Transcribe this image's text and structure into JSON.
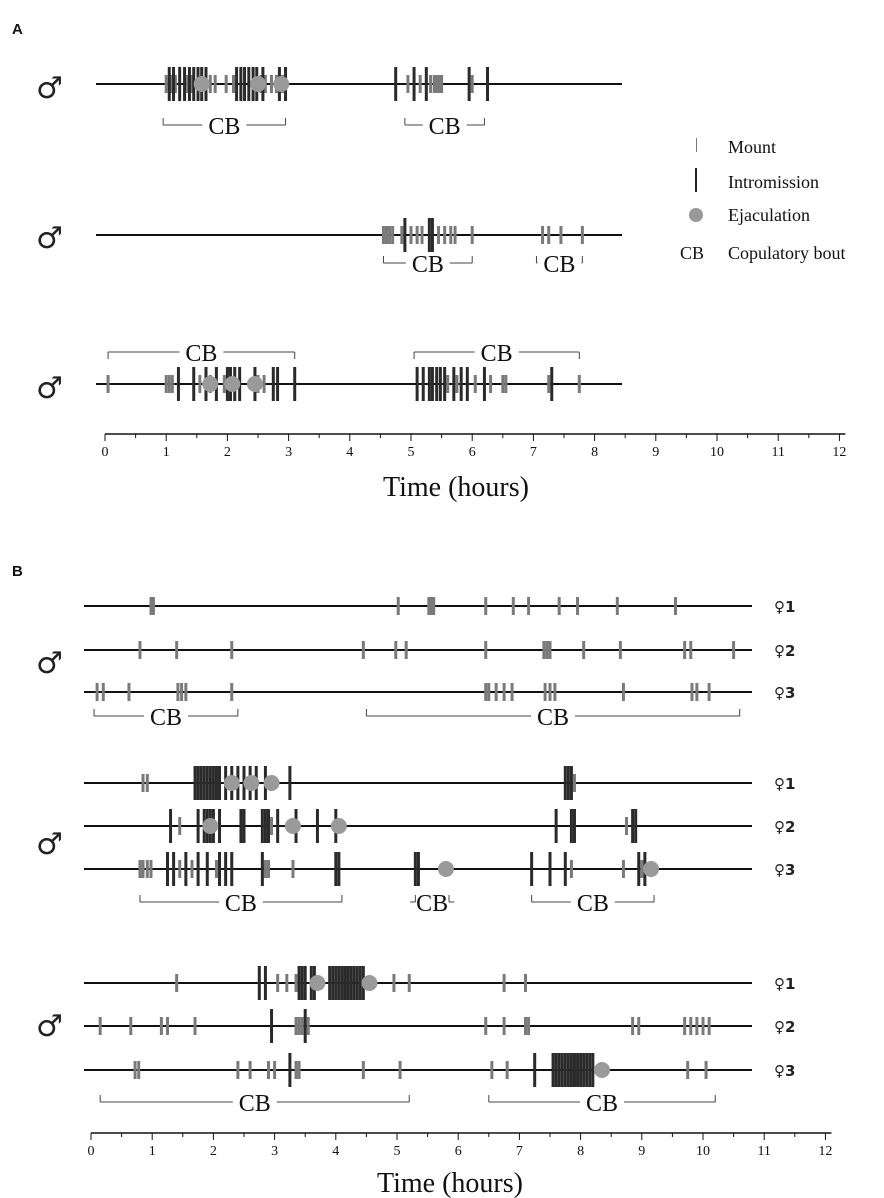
{
  "chart_data": [
    {
      "type": "ethogram",
      "panel": "A",
      "xlabel": "Time (hours)",
      "xlim": [
        0,
        12
      ],
      "x_ticks": [
        "0",
        "1",
        "2",
        "3",
        "4",
        "5",
        "6",
        "7",
        "8",
        "9",
        "10",
        "11",
        "12"
      ],
      "legend": {
        "placement": "right",
        "entries": [
          {
            "symbol": "mount-mark",
            "label": "Mount"
          },
          {
            "symbol": "intromission-mark",
            "label": "Intromission"
          },
          {
            "symbol": "ejaculation-mark",
            "label": "Ejaculation"
          },
          {
            "symbol": "CB",
            "label": "Copulatory bout"
          }
        ]
      },
      "rows": [
        {
          "symbol": "♂",
          "female": "",
          "line_x": [
            -0.2,
            8.4
          ],
          "mounts": [
            1.0,
            1.08,
            1.15,
            1.35,
            1.42,
            1.72,
            1.8,
            1.98,
            2.1,
            2.55,
            2.62,
            2.72,
            2.8,
            2.9,
            4.95,
            5.15,
            5.32,
            5.38,
            5.42,
            5.46,
            5.5,
            6.0
          ],
          "intromissions": [
            1.05,
            1.12,
            1.22,
            1.3,
            1.38,
            1.45,
            1.52,
            1.58,
            1.65,
            2.15,
            2.22,
            2.28,
            2.35,
            2.42,
            2.48,
            2.58,
            2.85,
            2.95,
            4.75,
            5.05,
            5.25,
            5.95,
            6.25
          ],
          "ejaculations": [
            1.58,
            2.5,
            2.88
          ],
          "bouts": [
            [
              0.95,
              2.95
            ],
            [
              4.9,
              6.2
            ]
          ]
        },
        {
          "symbol": "♂",
          "female": "",
          "line_x": [
            -0.2,
            8.4
          ],
          "mounts": [
            4.55,
            4.6,
            4.65,
            4.7,
            4.85,
            5.0,
            5.1,
            5.18,
            5.45,
            5.55,
            5.65,
            5.72,
            6.0,
            7.15,
            7.25,
            7.45,
            7.8
          ],
          "intromissions": [
            4.9,
            5.3,
            5.35
          ],
          "ejaculations": [],
          "bouts": [
            [
              4.55,
              6.0
            ],
            [
              7.05,
              7.8
            ]
          ]
        },
        {
          "symbol": "♂",
          "female": "",
          "line_x": [
            -0.2,
            8.4
          ],
          "mounts": [
            0.05,
            1.0,
            1.05,
            1.1,
            1.55,
            1.72,
            1.95,
            2.5,
            2.6,
            5.6,
            5.75,
            6.05,
            6.3,
            6.5,
            6.55,
            7.25,
            7.75
          ],
          "intromissions": [
            1.2,
            1.45,
            1.65,
            1.82,
            2.0,
            2.05,
            2.12,
            2.2,
            2.45,
            2.75,
            2.82,
            3.1,
            5.1,
            5.2,
            5.3,
            5.35,
            5.42,
            5.48,
            5.55,
            5.7,
            5.82,
            5.92,
            6.2,
            7.3
          ],
          "ejaculations": [
            1.72,
            2.08,
            2.45
          ],
          "bouts": [
            [
              0.05,
              3.1
            ],
            [
              5.05,
              7.75
            ]
          ]
        }
      ]
    },
    {
      "type": "ethogram",
      "panel": "B",
      "xlabel": "Time (hours)",
      "xlim": [
        0,
        12
      ],
      "x_ticks": [
        "0",
        "1",
        "2",
        "3",
        "4",
        "5",
        "6",
        "7",
        "8",
        "9",
        "10",
        "11",
        "12"
      ],
      "groups": [
        {
          "symbol": "♂",
          "bouts": [
            [
              0.05,
              2.4
            ],
            [
              4.5,
              10.6
            ]
          ],
          "rows": [
            {
              "female": "♀1",
              "mounts": [
                0.98,
                1.02,
                5.02,
                5.52,
                5.56,
                5.6,
                6.45,
                6.9,
                7.15,
                7.65,
                7.95,
                8.6,
                9.55
              ],
              "intromissions": [],
              "ejaculations": []
            },
            {
              "female": "♀2",
              "mounts": [
                0.8,
                1.4,
                2.3,
                4.45,
                4.98,
                5.15,
                6.45,
                7.4,
                7.45,
                7.5,
                8.05,
                8.65,
                9.7,
                9.8,
                10.5
              ],
              "intromissions": [],
              "ejaculations": []
            },
            {
              "female": "♀3",
              "mounts": [
                0.1,
                0.2,
                0.62,
                1.42,
                1.48,
                1.55,
                2.3,
                6.45,
                6.5,
                6.62,
                6.75,
                6.88,
                7.42,
                7.5,
                7.58,
                8.7,
                9.82,
                9.9,
                10.1
              ],
              "intromissions": [],
              "ejaculations": []
            }
          ]
        },
        {
          "symbol": "♂",
          "bouts": [
            [
              0.8,
              4.1
            ],
            [
              5.3,
              5.85
            ],
            [
              7.2,
              9.2
            ]
          ],
          "rows": [
            {
              "female": "♀1",
              "mounts": [
                0.85,
                0.92,
                7.9
              ],
              "intromissions": [
                1.7,
                1.75,
                1.8,
                1.85,
                1.9,
                1.95,
                2.0,
                2.05,
                2.1,
                2.2,
                2.3,
                2.4,
                2.5,
                2.6,
                2.7,
                2.85,
                3.25,
                7.75,
                7.8,
                7.85
              ],
              "ejaculations": [
                2.3,
                2.62,
                2.95
              ]
            },
            {
              "female": "♀2",
              "mounts": [
                1.45,
                2.95,
                8.75
              ],
              "intromissions": [
                1.3,
                1.75,
                1.85,
                1.9,
                1.95,
                2.0,
                2.1,
                2.45,
                2.5,
                2.8,
                2.85,
                2.9,
                3.05,
                3.35,
                3.7,
                4.0,
                7.6,
                7.85,
                7.9,
                8.85,
                8.9
              ],
              "ejaculations": [
                1.95,
                3.3,
                4.05
              ]
            },
            {
              "female": "♀3",
              "mounts": [
                0.8,
                0.85,
                0.92,
                0.98,
                1.45,
                1.65,
                2.05,
                2.85,
                2.9,
                3.3,
                5.35,
                7.85,
                8.7,
                9.0
              ],
              "intromissions": [
                1.25,
                1.35,
                1.55,
                1.75,
                1.9,
                2.1,
                2.2,
                2.3,
                2.8,
                4.0,
                4.05,
                5.3,
                5.35,
                7.2,
                7.5,
                7.75,
                8.95,
                9.05
              ],
              "ejaculations": [
                5.8,
                9.15
              ]
            }
          ]
        },
        {
          "symbol": "♂",
          "bouts": [
            [
              0.15,
              5.2
            ],
            [
              6.5,
              10.2
            ]
          ],
          "rows": [
            {
              "female": "♀1",
              "mounts": [
                1.4,
                3.05,
                3.2,
                3.35,
                4.95,
                5.2,
                6.75,
                7.1
              ],
              "intromissions": [
                2.75,
                2.85,
                3.4,
                3.45,
                3.5,
                3.6,
                3.65,
                3.9,
                3.95,
                4.0,
                4.05,
                4.1,
                4.15,
                4.2,
                4.25,
                4.3,
                4.35,
                4.4,
                4.45
              ],
              "ejaculations": [
                3.7,
                4.55
              ]
            },
            {
              "female": "♀2",
              "mounts": [
                0.15,
                0.65,
                1.15,
                1.25,
                1.7,
                3.35,
                3.4,
                3.45,
                3.55,
                6.45,
                6.75,
                7.1,
                7.15,
                8.85,
                8.95,
                9.7,
                9.8,
                9.9,
                10.0,
                10.1
              ],
              "intromissions": [
                2.95,
                3.5
              ],
              "ejaculations": []
            },
            {
              "female": "♀3",
              "mounts": [
                0.72,
                0.78,
                2.4,
                2.6,
                2.9,
                3.0,
                3.35,
                3.4,
                4.45,
                5.05,
                6.55,
                6.8,
                9.75,
                10.05
              ],
              "intromissions": [
                3.25,
                7.25,
                7.55,
                7.6,
                7.65,
                7.7,
                7.75,
                7.8,
                7.85,
                7.9,
                7.95,
                8.0,
                8.05,
                8.1,
                8.15,
                8.2
              ],
              "ejaculations": [
                8.35
              ]
            }
          ]
        }
      ]
    }
  ],
  "labels": {
    "cb": "CB"
  }
}
